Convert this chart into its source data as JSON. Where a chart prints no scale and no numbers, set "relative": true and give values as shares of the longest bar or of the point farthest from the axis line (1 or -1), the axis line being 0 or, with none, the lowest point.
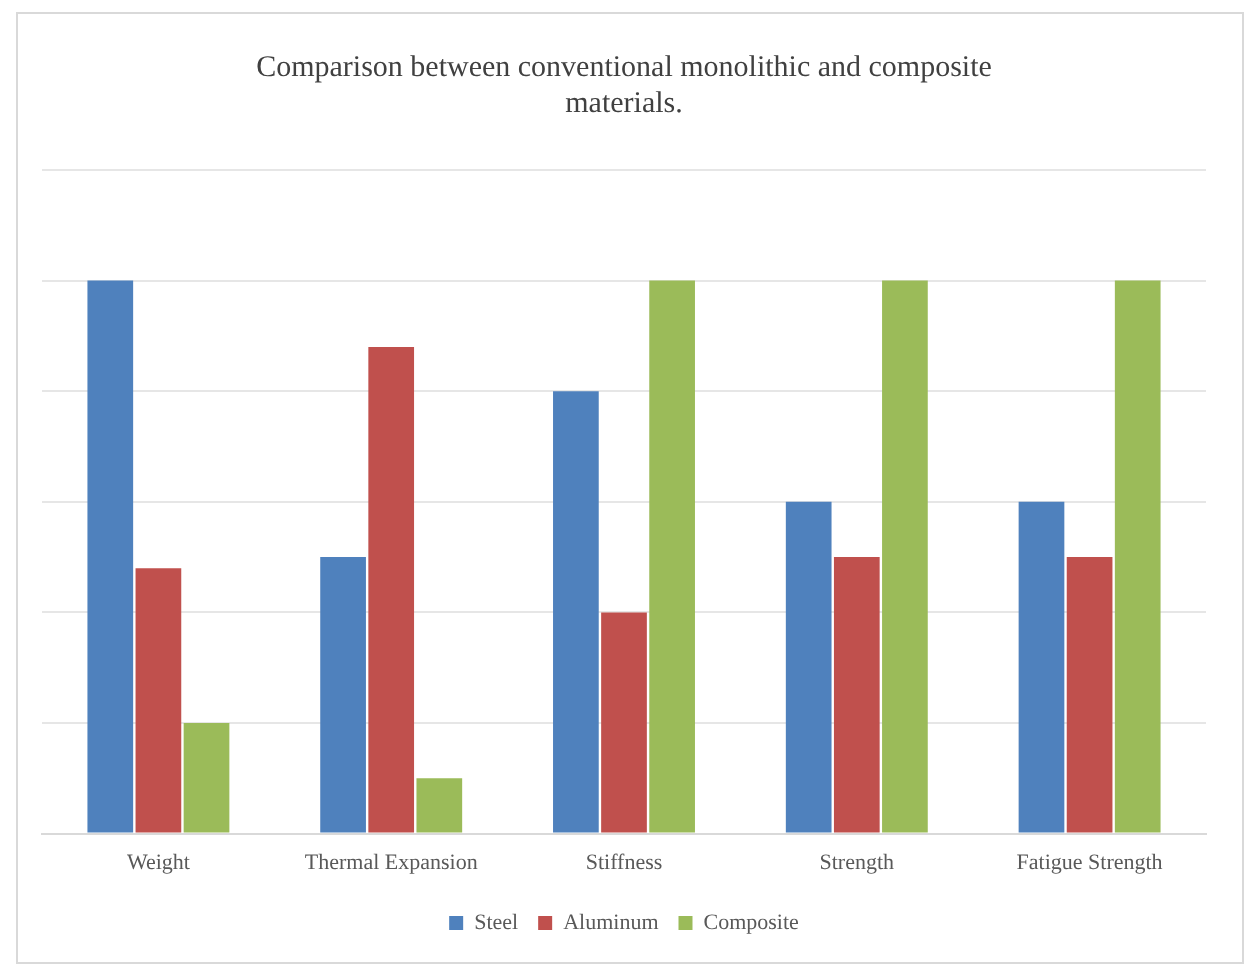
{
  "chart_data": {
    "type": "bar",
    "title": "Comparison between conventional monolithic and composite materials.",
    "categories": [
      "Weight",
      "Thermal Expansion",
      "Stiffness",
      "Strength",
      "Fatigue Strength"
    ],
    "relative": true,
    "grid": "y",
    "legend": "bottom",
    "series": [
      {
        "name": "Steel",
        "color": "#4f81bd",
        "values": [
          1,
          0.5,
          0.8,
          0.6,
          0.6
        ]
      },
      {
        "name": "Aluminum",
        "color": "#c0504d",
        "values": [
          0.48,
          0.88,
          0.4,
          0.5,
          0.5
        ]
      },
      {
        "name": "Composite",
        "color": "#9bbb59",
        "values": [
          0.2,
          0.1,
          1,
          1,
          1
        ]
      }
    ]
  }
}
